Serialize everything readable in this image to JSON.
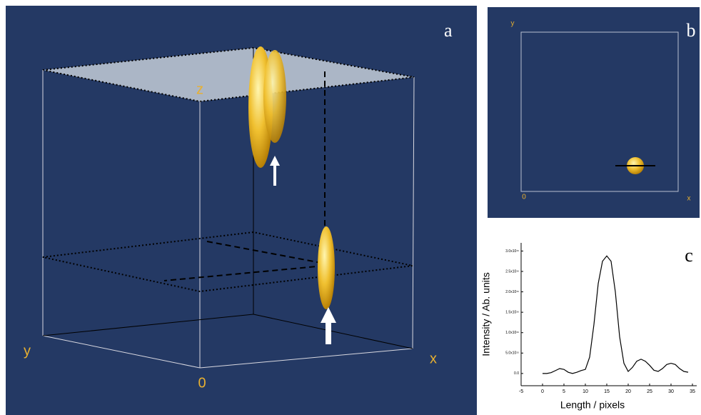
{
  "panels": {
    "a": {
      "label": "a",
      "axes": {
        "z": "z",
        "y": "y",
        "x": "x",
        "origin": "0"
      }
    },
    "b": {
      "label": "b",
      "axes": {
        "y": "y",
        "x": "x",
        "origin": "0"
      }
    }
  },
  "chart_data": {
    "type": "line",
    "annotation": "c",
    "xlabel": "Length / pixels",
    "ylabel": "Intensity / Ab. units",
    "x": [
      0,
      1,
      2,
      3,
      4,
      5,
      6,
      7,
      8,
      9,
      10,
      11,
      12,
      13,
      14,
      15,
      16,
      17,
      18,
      19,
      20,
      21,
      22,
      23,
      24,
      25,
      26,
      27,
      28,
      29,
      30,
      31,
      32,
      33,
      34
    ],
    "values": [
      0,
      0,
      200000000000000.0,
      700000000000000.0,
      1200000000000000.0,
      1000000000000000.0,
      300000000000000.0,
      0,
      300000000000000.0,
      700000000000000.0,
      1000000000000000.0,
      4000000000000000.0,
      1.2e+16,
      2.2e+16,
      2.75e+16,
      2.88e+16,
      2.75e+16,
      2e+16,
      9000000000000000.0,
      2500000000000000.0,
      500000000000000.0,
      1500000000000000.0,
      3000000000000000.0,
      3500000000000000.0,
      3000000000000000.0,
      2000000000000000.0,
      800000000000000.0,
      500000000000000.0,
      1200000000000000.0,
      2200000000000000.0,
      2500000000000000.0,
      2200000000000000.0,
      1200000000000000.0,
      500000000000000.0,
      300000000000000.0
    ],
    "color": "#000000",
    "xlim": [
      -5,
      36
    ],
    "ylim": [
      -3000000000000000.0,
      3.2e+16
    ],
    "xticks": [
      -5,
      0,
      5,
      10,
      15,
      20,
      25,
      30,
      35
    ],
    "yticks": [
      {
        "value": 0,
        "label": "0.0"
      },
      {
        "value": 5000000000000000.0,
        "label": "5.0x10¹⁵"
      },
      {
        "value": 1e+16,
        "label": "1.0x10¹⁶"
      },
      {
        "value": 1.5e+16,
        "label": "1.5x10¹⁶"
      },
      {
        "value": 2e+16,
        "label": "2.0x10¹⁶"
      },
      {
        "value": 2.5e+16,
        "label": "2.5x10¹⁶"
      },
      {
        "value": 3e+16,
        "label": "3.0x10¹⁶"
      }
    ]
  }
}
